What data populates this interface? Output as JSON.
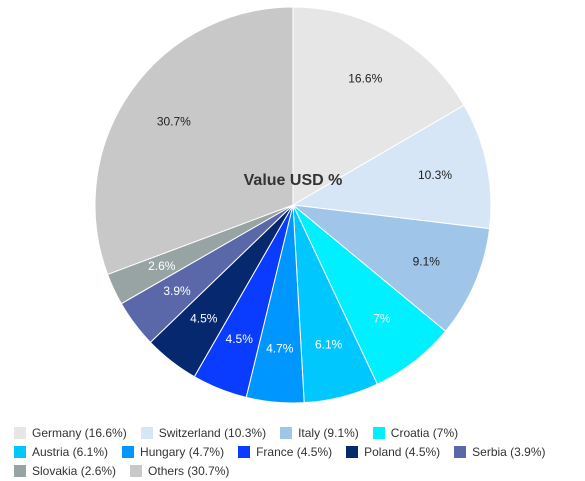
{
  "chart_data": {
    "type": "pie",
    "title": "Value USD %",
    "slices": [
      {
        "label": "Germany",
        "value": 16.6,
        "display": "16.6%",
        "legend": "Germany (16.6%)",
        "color": "#e6e6e6",
        "label_color": "#222222"
      },
      {
        "label": "Switzerland",
        "value": 10.3,
        "display": "10.3%",
        "legend": "Switzerland (10.3%)",
        "color": "#d7e6f7",
        "label_color": "#222222"
      },
      {
        "label": "Italy",
        "value": 9.1,
        "display": "9.1%",
        "legend": "Italy (9.1%)",
        "color": "#9fc5e8",
        "label_color": "#222222"
      },
      {
        "label": "Croatia",
        "value": 7,
        "display": "7%",
        "legend": "Croatia (7%)",
        "color": "#00f0ff",
        "label_color": "#ffffff"
      },
      {
        "label": "Austria",
        "value": 6.1,
        "display": "6.1%",
        "legend": "Austria (6.1%)",
        "color": "#00c8ff",
        "label_color": "#ffffff"
      },
      {
        "label": "Hungary",
        "value": 4.7,
        "display": "4.7%",
        "legend": "Hungary (4.7%)",
        "color": "#0096ff",
        "label_color": "#ffffff"
      },
      {
        "label": "France",
        "value": 4.5,
        "display": "4.5%",
        "legend": "France (4.5%)",
        "color": "#0a3cff",
        "label_color": "#ffffff"
      },
      {
        "label": "Poland",
        "value": 4.5,
        "display": "4.5%",
        "legend": "Poland (4.5%)",
        "color": "#06286e",
        "label_color": "#ffffff"
      },
      {
        "label": "Serbia",
        "value": 3.9,
        "display": "3.9%",
        "legend": "Serbia (3.9%)",
        "color": "#5a68aa",
        "label_color": "#ffffff"
      },
      {
        "label": "Slovakia",
        "value": 2.6,
        "display": "2.6%",
        "legend": "Slovakia (2.6%)",
        "color": "#98a3a3",
        "label_color": "#ffffff"
      },
      {
        "label": "Others",
        "value": 30.7,
        "display": "30.7%",
        "legend": "Others (30.7%)",
        "color": "#c8c8c8",
        "label_color": "#222222"
      }
    ],
    "legend_position": "bottom"
  }
}
